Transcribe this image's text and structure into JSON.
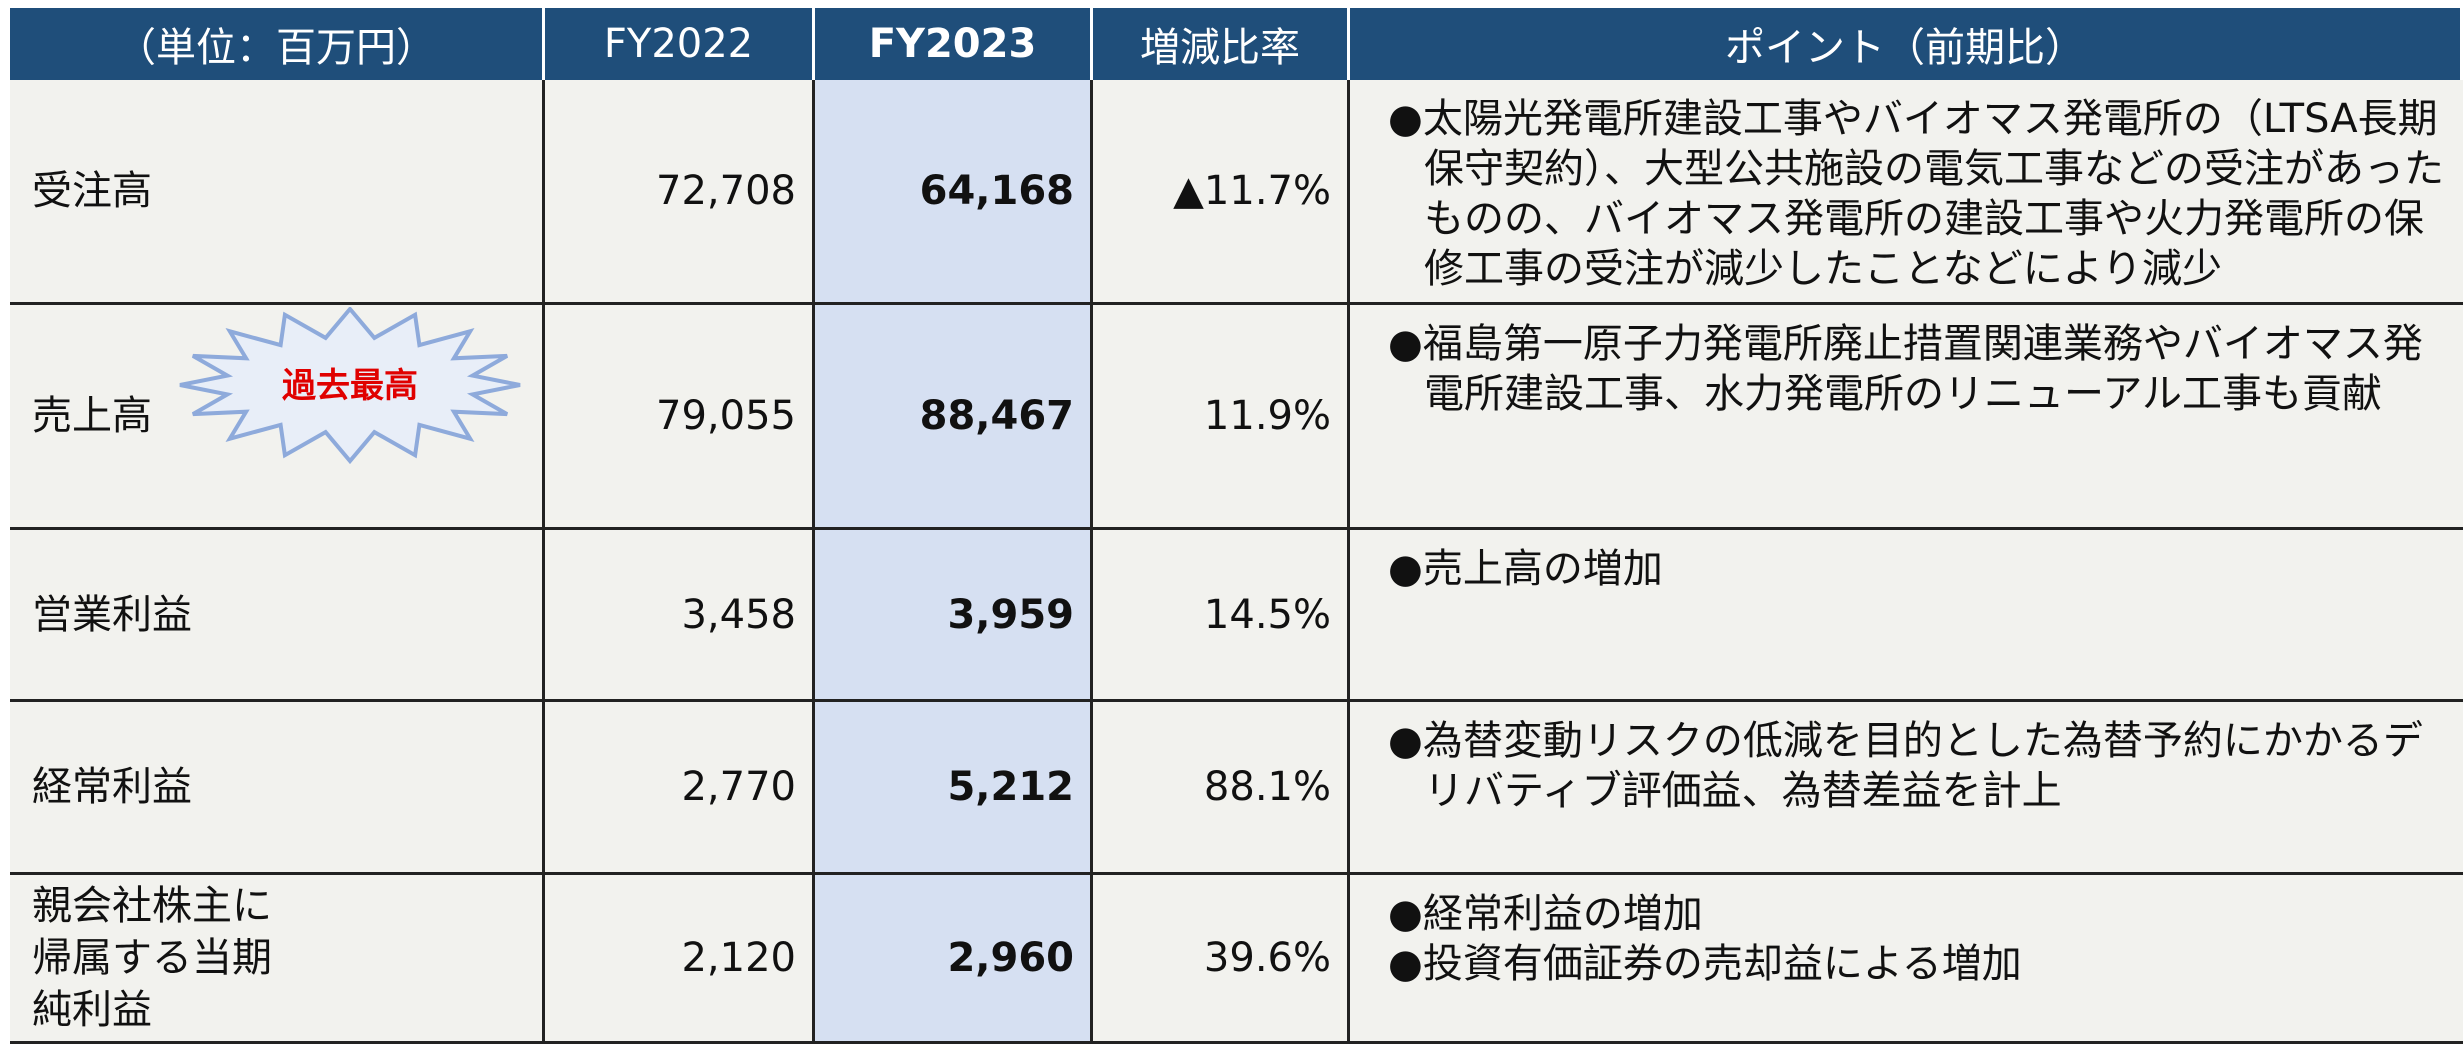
{
  "table": {
    "header": [
      "（単位：百万円）",
      "FY2022",
      "FY2023",
      "増減比率",
      "ポイント（前期比）"
    ],
    "rows": [
      {
        "item": "受注高",
        "fy2022": "72,708",
        "fy2023": "64,168",
        "change": "▲11.7%",
        "points": [
          "●太陽光発電所建設工事やバイオマス発電所の（LTSA長期保守契約）、大型公共施設の電気工事などの受注があったものの、バイオマス発電所の建設工事や火力発電所の保修工事の受注が減少したことなどにより減少"
        ]
      },
      {
        "item": "売上高",
        "badge": "過去最高",
        "fy2022": "79,055",
        "fy2023": "88,467",
        "change": "11.9%",
        "points": [
          "●福島第一原子力発電所廃止措置関連業務やバイオマス発電所建設工事、水力発電所のリニューアル工事も貢献"
        ]
      },
      {
        "item": "営業利益",
        "fy2022": "3,458",
        "fy2023": "3,959",
        "change": "14.5%",
        "points": [
          "●売上高の増加"
        ]
      },
      {
        "item": "経常利益",
        "fy2022": "2,770",
        "fy2023": "5,212",
        "change": "88.1%",
        "points": [
          "●為替変動リスクの低減を目的とした為替予約にかかるデリバティブ評価益、為替差益を計上"
        ]
      },
      {
        "item": "親会社株主に帰属する当期純利益",
        "fy2022": "2,120",
        "fy2023": "2,960",
        "change": "39.6%",
        "points": [
          "●経常利益の増加",
          "●投資有価証券の売却益による増加"
        ]
      }
    ]
  }
}
